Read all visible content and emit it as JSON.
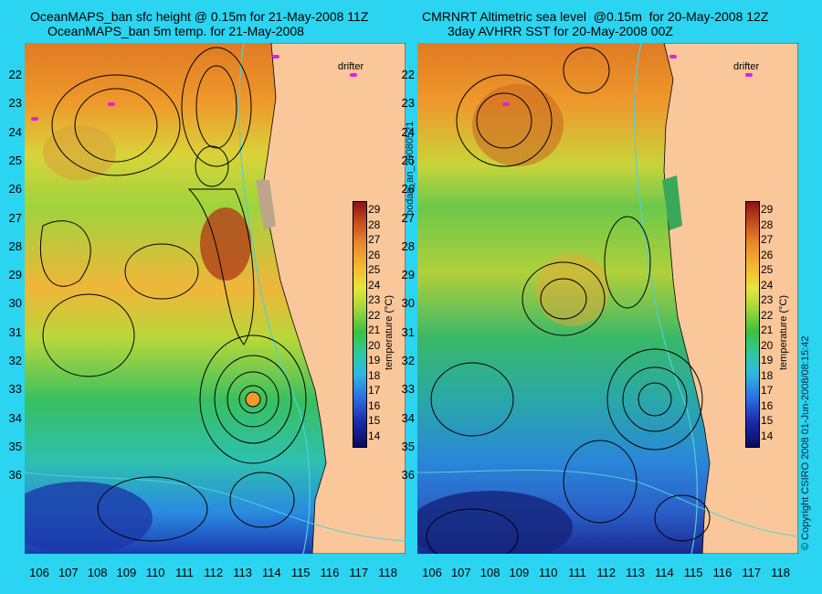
{
  "left_panel": {
    "title_line1": "OceanMAPS_ban sfc height @ 0.15m for 21-May-2008 11Z",
    "title_line2": "OceanMAPS_ban 5m temp. for 21-May-2008",
    "drifter_label": "drifter"
  },
  "right_panel": {
    "title_line1": "CMRNRT Altimetric sea level  @0.15m  for 20-May-2008 12Z",
    "title_line2": "3day AVHRR SST for 20-May-2008 00Z",
    "drifter_label": "drifter"
  },
  "middle_label": "bodas_an_20080521",
  "right_edge_label": "© Copyright CSIRO 2008    01-Jun-2008/08:15:42",
  "colorbar": {
    "unit_label": "temperature (°C)",
    "ticks": [
      "29",
      "28",
      "27",
      "26",
      "25",
      "24",
      "23",
      "22",
      "21",
      "20",
      "19",
      "18",
      "17",
      "16",
      "15",
      "14"
    ]
  },
  "latitudes": [
    "22",
    "23",
    "24",
    "25",
    "26",
    "27",
    "28",
    "29",
    "30",
    "31",
    "32",
    "33",
    "34",
    "35",
    "36"
  ],
  "longitudes": [
    "106",
    "107",
    "108",
    "109",
    "110",
    "111",
    "112",
    "113",
    "114",
    "115",
    "116",
    "117",
    "118"
  ],
  "colors": {
    "background": "#2bd4f0",
    "land": "#fac79a",
    "contour": "#000000",
    "isobath": "#4fd0d8",
    "drifter": "#e020e0"
  }
}
